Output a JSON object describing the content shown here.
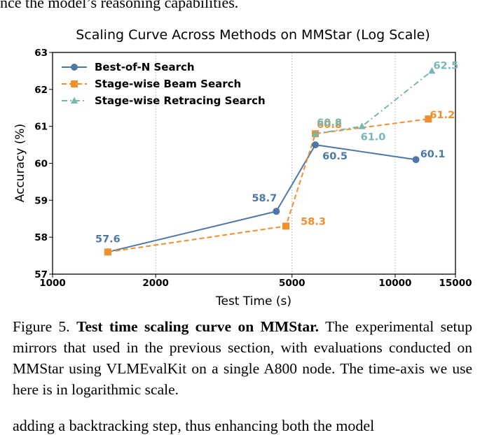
{
  "top_text": "nce the model’s reasoning capabilities.",
  "figure": {
    "label": "Figure 5.",
    "bold_title": "Test time scaling curve on MMStar.",
    "text": "The experimental setup mirrors that used in the previous section, with evaluations conducted on MMStar using VLMEvalKit on a single A800 node. The time-axis we use here is in logarithmic scale."
  },
  "bottom_text": "adding a backtracking step, thus enhancing both the model",
  "chart_data": {
    "type": "line",
    "title": "Scaling Curve Across Methods on MMStar (Log Scale)",
    "xlabel": "Test Time (s)",
    "ylabel": "Accuracy (%)",
    "x_scale": "log",
    "xlim": [
      1000,
      15000
    ],
    "ylim": [
      57,
      63
    ],
    "x_ticks": [
      1000,
      2000,
      5000,
      10000,
      15000
    ],
    "y_ticks": [
      57,
      58,
      59,
      60,
      61,
      62,
      63
    ],
    "grid": "vertical-dotted",
    "legend_position": "top-left",
    "series": [
      {
        "name": "Best-of-N Search",
        "color": "#4c78a8",
        "marker": "circle",
        "linestyle": "solid",
        "x": [
          1450,
          4500,
          5850,
          11500
        ],
        "y": [
          57.6,
          58.7,
          60.5,
          60.1
        ],
        "labels": [
          "57.6",
          "58.7",
          "60.5",
          "60.1"
        ]
      },
      {
        "name": "Stage-wise Beam Search",
        "color": "#f28e2b",
        "marker": "square",
        "linestyle": "dashed",
        "x": [
          1450,
          4800,
          5850,
          12500
        ],
        "y": [
          57.6,
          58.3,
          60.8,
          61.2
        ],
        "labels": [
          "57.6",
          "58.3",
          "60.8",
          "61.2"
        ]
      },
      {
        "name": "Stage-wise Retracing Search",
        "color": "#76b7b2",
        "marker": "triangle",
        "linestyle": "dashdot",
        "x": [
          5850,
          8000,
          12800
        ],
        "y": [
          60.8,
          61.0,
          62.5
        ],
        "labels": [
          "60.8",
          "61.0",
          "62.5"
        ]
      }
    ]
  }
}
